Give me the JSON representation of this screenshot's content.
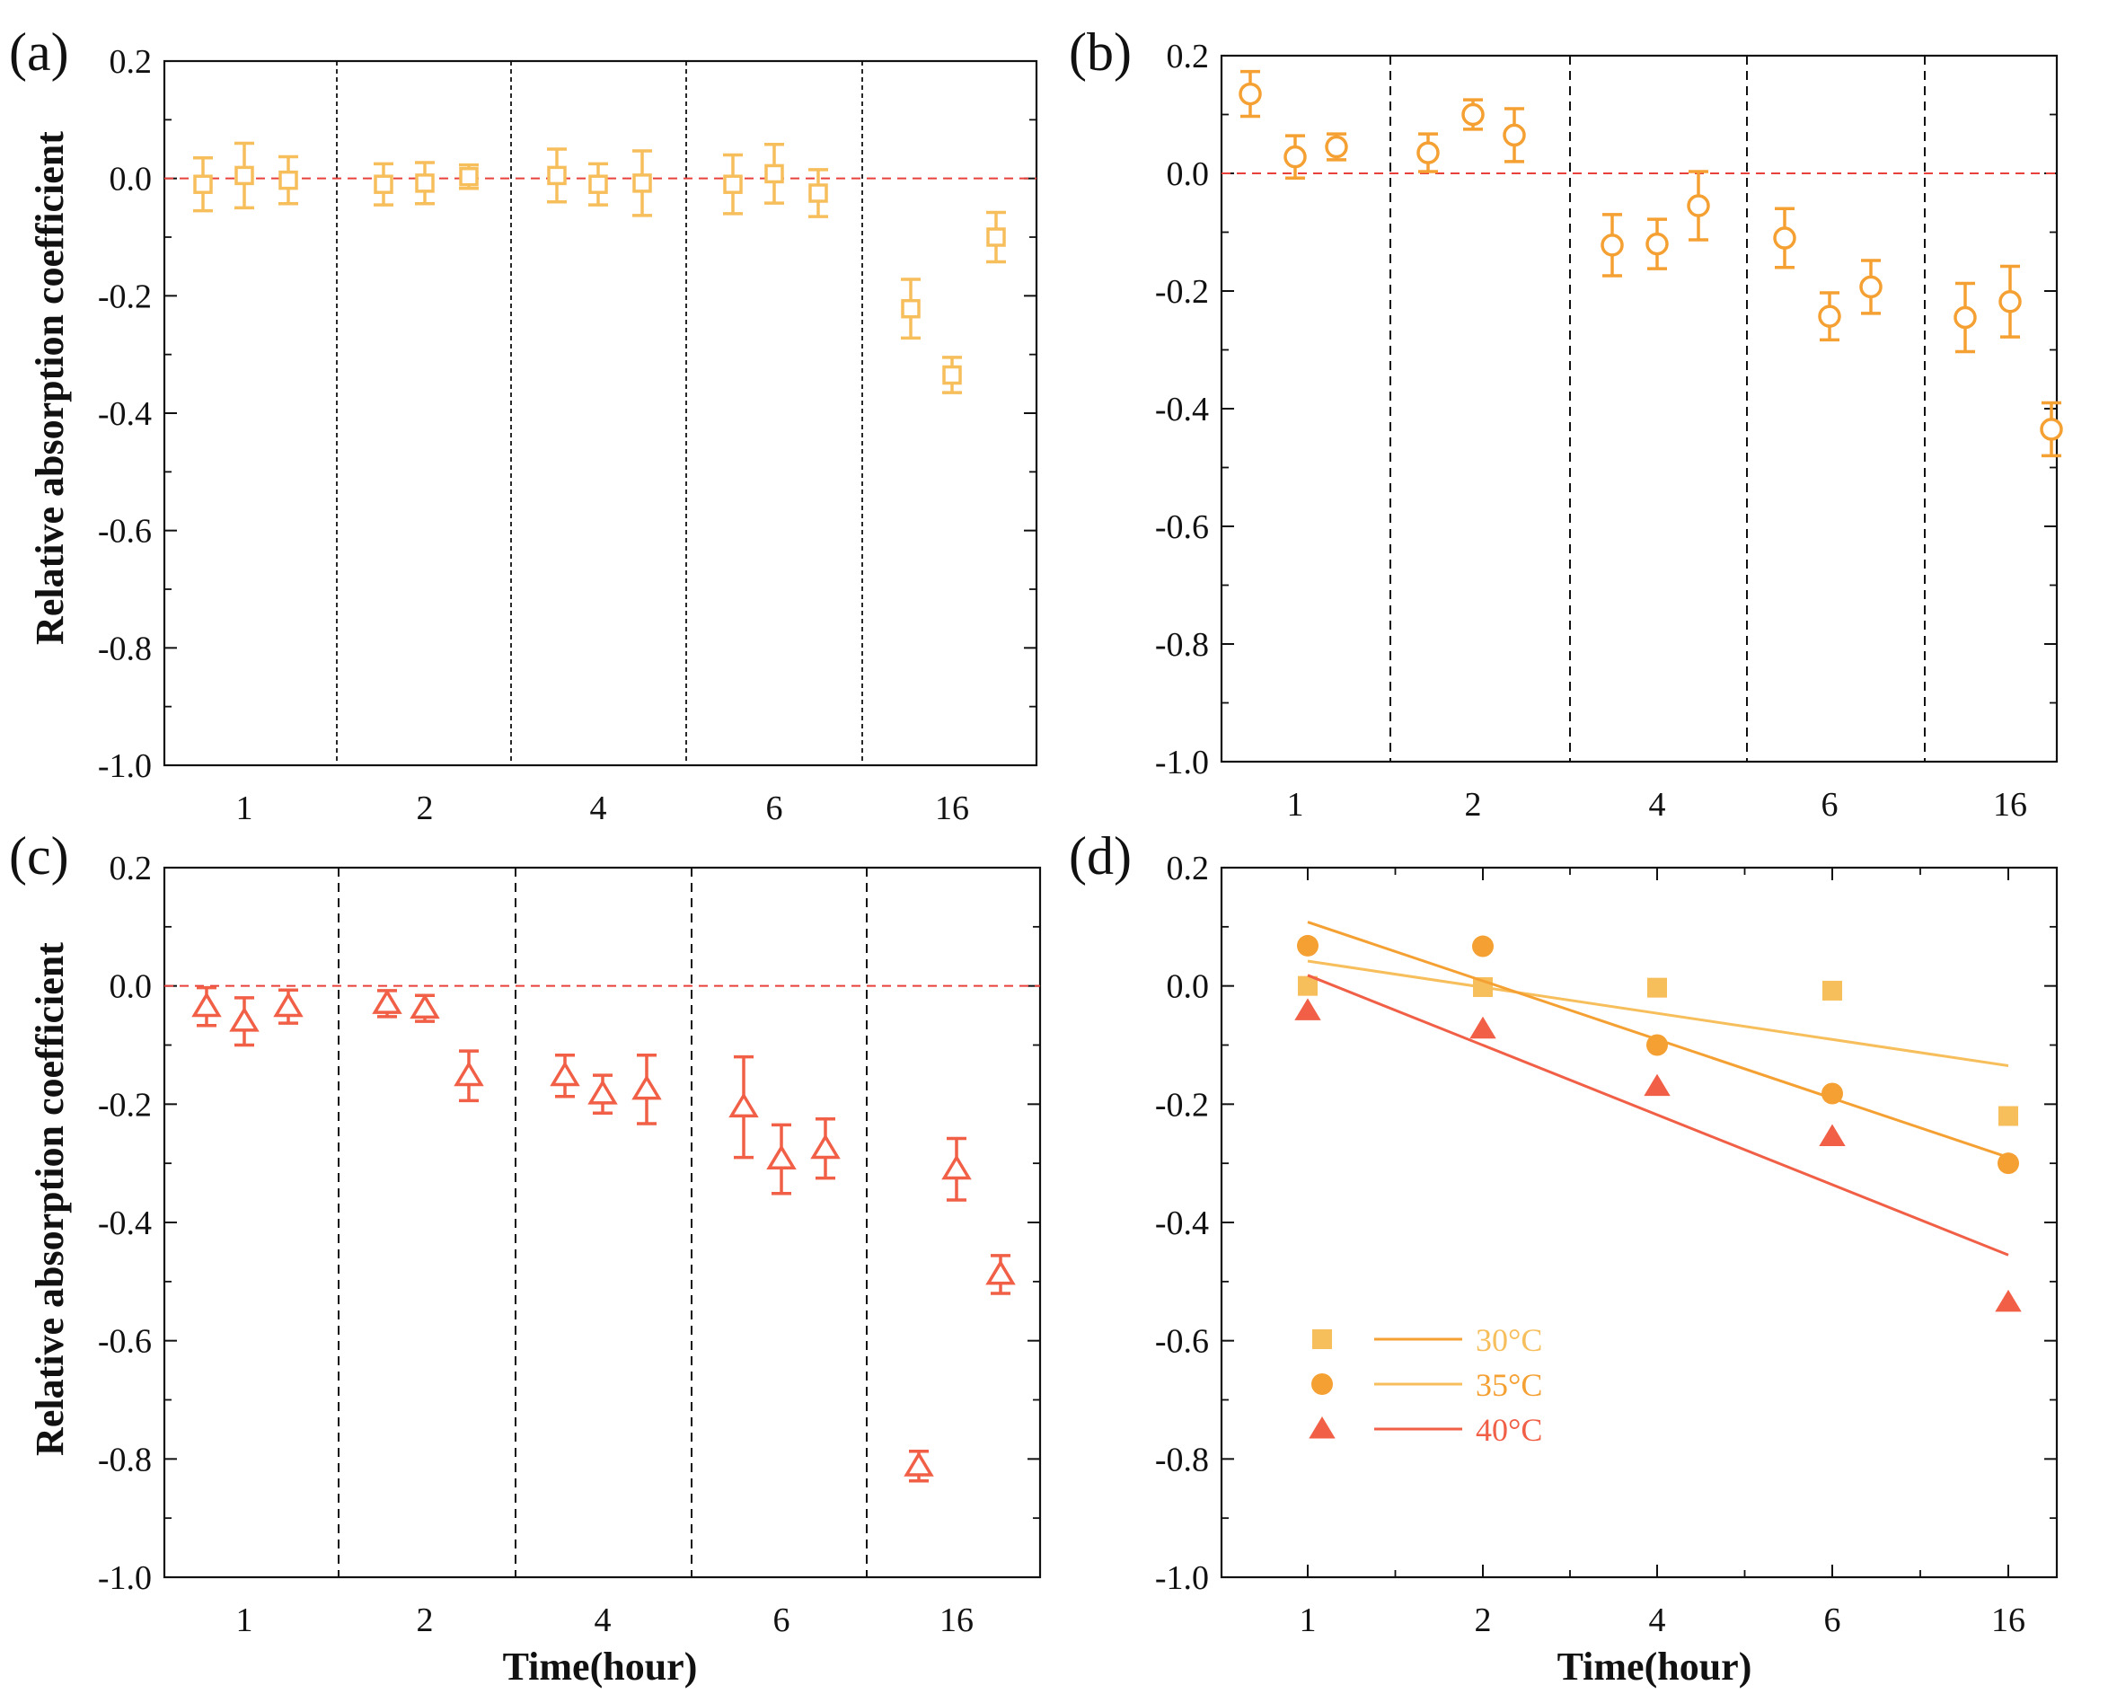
{
  "colors": {
    "c30": "#F7BE5C",
    "c35": "#F5A032",
    "c40": "#F05F46",
    "zero_line": "#E8403A",
    "axis": "#111111"
  },
  "shared": {
    "ylabel": "Relative absorption coefficient",
    "xlabel": "Time(hour)",
    "categories": [
      "1",
      "2",
      "4",
      "6",
      "16"
    ],
    "ytick_labels": [
      "0.2",
      "0.0",
      "-0.2",
      "-0.4",
      "-0.6",
      "-0.8",
      "-1.0"
    ]
  },
  "chart_data": [
    {
      "panel": "(a)",
      "type": "scatter",
      "title": "",
      "xlabel": "",
      "ylabel": "Relative absorption coefficient",
      "ylim": [
        -1.0,
        0.2
      ],
      "yticks": [
        0.2,
        0.0,
        -0.2,
        -0.4,
        -0.6,
        -0.8,
        -1.0
      ],
      "categories": [
        "1",
        "2",
        "4",
        "6",
        "16"
      ],
      "marker": "open-square",
      "color": "#F7BE5C",
      "zero_line": true,
      "points": [
        {
          "group": "1",
          "y": -0.01,
          "err": 0.045
        },
        {
          "group": "1",
          "y": 0.005,
          "err": 0.055
        },
        {
          "group": "1",
          "y": -0.003,
          "err": 0.04
        },
        {
          "group": "2",
          "y": -0.01,
          "err": 0.035
        },
        {
          "group": "2",
          "y": -0.008,
          "err": 0.035
        },
        {
          "group": "2",
          "y": 0.003,
          "err": 0.02
        },
        {
          "group": "4",
          "y": 0.005,
          "err": 0.045
        },
        {
          "group": "4",
          "y": -0.01,
          "err": 0.035
        },
        {
          "group": "4",
          "y": -0.008,
          "err": 0.055
        },
        {
          "group": "6",
          "y": -0.01,
          "err": 0.05
        },
        {
          "group": "6",
          "y": 0.008,
          "err": 0.05
        },
        {
          "group": "6",
          "y": -0.025,
          "err": 0.04
        },
        {
          "group": "16",
          "y": -0.222,
          "err": 0.05
        },
        {
          "group": "16",
          "y": -0.335,
          "err": 0.03
        },
        {
          "group": "16",
          "y": -0.1,
          "err": 0.042
        }
      ]
    },
    {
      "panel": "(b)",
      "type": "scatter",
      "title": "",
      "xlabel": "",
      "ylabel": "",
      "ylim": [
        -1.0,
        0.2
      ],
      "yticks": [
        0.2,
        0.0,
        -0.2,
        -0.4,
        -0.6,
        -0.8,
        -1.0
      ],
      "categories": [
        "1",
        "2",
        "4",
        "6",
        "16"
      ],
      "marker": "open-circle",
      "color": "#F5A032",
      "zero_line": true,
      "points": [
        {
          "group": "1",
          "y": 0.135,
          "err": 0.038
        },
        {
          "group": "1",
          "y": 0.028,
          "err": 0.036
        },
        {
          "group": "1",
          "y": 0.045,
          "err": 0.022
        },
        {
          "group": "2",
          "y": 0.035,
          "err": 0.032
        },
        {
          "group": "2",
          "y": 0.1,
          "err": 0.025
        },
        {
          "group": "2",
          "y": 0.065,
          "err": 0.045
        },
        {
          "group": "4",
          "y": -0.122,
          "err": 0.052
        },
        {
          "group": "4",
          "y": -0.12,
          "err": 0.042
        },
        {
          "group": "4",
          "y": -0.055,
          "err": 0.058
        },
        {
          "group": "6",
          "y": -0.11,
          "err": 0.05
        },
        {
          "group": "6",
          "y": -0.243,
          "err": 0.04
        },
        {
          "group": "6",
          "y": -0.193,
          "err": 0.045
        },
        {
          "group": "16",
          "y": -0.245,
          "err": 0.058
        },
        {
          "group": "16",
          "y": -0.218,
          "err": 0.06
        },
        {
          "group": "16",
          "y": -0.435,
          "err": 0.045
        }
      ]
    },
    {
      "panel": "(c)",
      "type": "scatter",
      "title": "",
      "xlabel": "Time(hour)",
      "ylabel": "Relative absorption coefficient",
      "ylim": [
        -1.0,
        0.2
      ],
      "yticks": [
        0.2,
        0.0,
        -0.2,
        -0.4,
        -0.6,
        -0.8,
        -1.0
      ],
      "categories": [
        "1",
        "2",
        "4",
        "6",
        "16"
      ],
      "marker": "open-triangle",
      "color": "#F05F46",
      "zero_line": true,
      "points": [
        {
          "group": "1",
          "y": -0.035,
          "err": 0.032
        },
        {
          "group": "1",
          "y": -0.06,
          "err": 0.04
        },
        {
          "group": "1",
          "y": -0.035,
          "err": 0.028
        },
        {
          "group": "2",
          "y": -0.03,
          "err": 0.022
        },
        {
          "group": "2",
          "y": -0.038,
          "err": 0.022
        },
        {
          "group": "2",
          "y": -0.152,
          "err": 0.042
        },
        {
          "group": "4",
          "y": -0.152,
          "err": 0.035
        },
        {
          "group": "4",
          "y": -0.183,
          "err": 0.032
        },
        {
          "group": "4",
          "y": -0.175,
          "err": 0.058
        },
        {
          "group": "6",
          "y": -0.205,
          "err": 0.085
        },
        {
          "group": "6",
          "y": -0.293,
          "err": 0.058
        },
        {
          "group": "6",
          "y": -0.275,
          "err": 0.05
        },
        {
          "group": "16",
          "y": -0.812,
          "err": 0.025
        },
        {
          "group": "16",
          "y": -0.31,
          "err": 0.052
        },
        {
          "group": "16",
          "y": -0.488,
          "err": 0.032
        }
      ]
    },
    {
      "panel": "(d)",
      "type": "scatter",
      "title": "",
      "xlabel": "Time(hour)",
      "ylabel": "",
      "ylim": [
        -1.0,
        0.2
      ],
      "yticks": [
        0.2,
        0.0,
        -0.2,
        -0.4,
        -0.6,
        -0.8,
        -1.0
      ],
      "categories": [
        "1",
        "2",
        "4",
        "6",
        "16"
      ],
      "legend_position": "bottom-left",
      "series": [
        {
          "name": "30°C",
          "marker": "filled-square",
          "color": "#F7BE5C",
          "values": [
            0.0,
            -0.002,
            -0.003,
            -0.008,
            -0.22
          ],
          "fit": {
            "start": 0.042,
            "end": -0.135
          }
        },
        {
          "name": "35°C",
          "marker": "filled-circle",
          "color": "#F5A032",
          "values": [
            0.068,
            0.067,
            -0.1,
            -0.182,
            -0.3
          ],
          "fit": {
            "start": 0.108,
            "end": -0.29
          }
        },
        {
          "name": "40°C",
          "marker": "filled-triangle",
          "color": "#F05F46",
          "values": [
            -0.042,
            -0.073,
            -0.17,
            -0.255,
            -0.535
          ],
          "fit": {
            "start": 0.018,
            "end": -0.455
          }
        }
      ],
      "legend": [
        {
          "label": "30°C",
          "marker": "filled-square",
          "marker_color": "#F7BE5C",
          "line_color": "#F5A032"
        },
        {
          "label": "35°C",
          "marker": "filled-circle",
          "marker_color": "#F5A032",
          "line_color": "#F7BE5C"
        },
        {
          "label": "40°C",
          "marker": "filled-triangle",
          "marker_color": "#F05F46",
          "line_color": "#F05F46"
        }
      ]
    }
  ]
}
